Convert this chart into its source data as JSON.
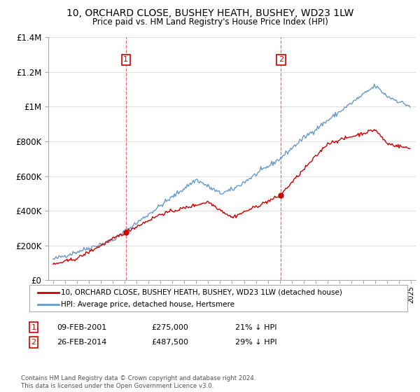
{
  "title": "10, ORCHARD CLOSE, BUSHEY HEATH, BUSHEY, WD23 1LW",
  "subtitle": "Price paid vs. HM Land Registry's House Price Index (HPI)",
  "legend_line1": "10, ORCHARD CLOSE, BUSHEY HEATH, BUSHEY, WD23 1LW (detached house)",
  "legend_line2": "HPI: Average price, detached house, Hertsmere",
  "annotation1_label": "1",
  "annotation1_date": "09-FEB-2001",
  "annotation1_price": "£275,000",
  "annotation1_hpi": "21% ↓ HPI",
  "annotation2_label": "2",
  "annotation2_date": "26-FEB-2014",
  "annotation2_price": "£487,500",
  "annotation2_hpi": "29% ↓ HPI",
  "footnote": "Contains HM Land Registry data © Crown copyright and database right 2024.\nThis data is licensed under the Open Government Licence v3.0.",
  "sale_color": "#cc0000",
  "hpi_color": "#6699cc",
  "vline_color": "#e87070",
  "annotation_box_color": "#cc0000",
  "ylim": [
    0,
    1400000
  ],
  "yticks": [
    0,
    200000,
    400000,
    600000,
    800000,
    1000000,
    1200000,
    1400000
  ],
  "ytick_labels": [
    "£0",
    "£200K",
    "£400K",
    "£600K",
    "£800K",
    "£1M",
    "£1.2M",
    "£1.4M"
  ],
  "sale1_year": 2001.1,
  "sale1_value": 275000,
  "sale2_year": 2014.1,
  "sale2_value": 487500,
  "start_year": 1995,
  "end_year": 2025
}
